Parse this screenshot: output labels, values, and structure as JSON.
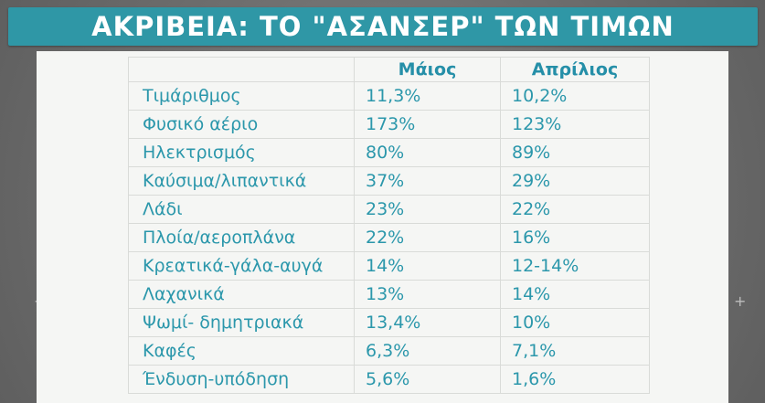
{
  "title": "ΑΚΡΙΒΕΙΑ: ΤΟ \"ΑΣΑΝΣΕΡ\" ΤΩΝ ΤΙΜΩΝ",
  "table": {
    "headers": [
      "",
      "Μάιος",
      "Απρίλιος"
    ],
    "rows": [
      {
        "item": "Τιμάριθμος",
        "may": "11,3%",
        "april": "10,2%"
      },
      {
        "item": "Φυσικό αέριο",
        "may": "173%",
        "april": "123%"
      },
      {
        "item": "Ηλεκτρισμός",
        "may": "80%",
        "april": "89%"
      },
      {
        "item": "Καύσιμα/λιπαντικά",
        "may": "37%",
        "april": "29%"
      },
      {
        "item": "Λάδι",
        "may": "23%",
        "april": "22%"
      },
      {
        "item": "Πλοία/αεροπλάνα",
        "may": "22%",
        "april": "16%"
      },
      {
        "item": "Κρεατικά-γάλα-αυγά",
        "may": "14%",
        "april": "12-14%"
      },
      {
        "item": "Λαχανικά",
        "may": "13%",
        "april": "14%"
      },
      {
        "item": "Ψωμί- δημητριακά",
        "may": "13,4%",
        "april": "10%"
      },
      {
        "item": "Καφές",
        "may": "6,3%",
        "april": "7,1%"
      },
      {
        "item": "Ένδυση-υπόδηση",
        "may": "5,6%",
        "april": "1,6%"
      }
    ]
  },
  "colors": {
    "title_bar": "#2f97a6",
    "table_text": "#2b97ab",
    "panel": "#f5f6f4",
    "background": "#6f6f6f"
  }
}
